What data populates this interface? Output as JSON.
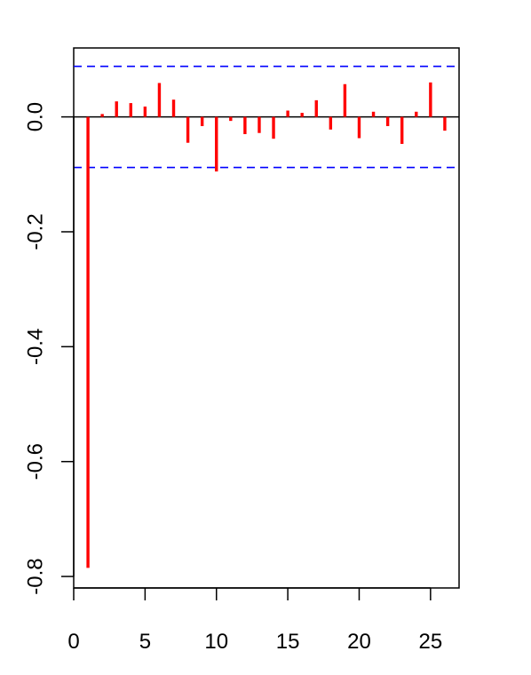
{
  "chart_data": {
    "type": "bar",
    "title": "",
    "xlabel": "",
    "ylabel": "",
    "x": [
      1,
      2,
      3,
      4,
      5,
      6,
      7,
      8,
      9,
      10,
      11,
      12,
      13,
      14,
      15,
      16,
      17,
      18,
      19,
      20,
      21,
      22,
      23,
      24,
      25,
      26
    ],
    "values": [
      -0.785,
      0.005,
      0.027,
      0.024,
      0.018,
      0.059,
      0.03,
      -0.045,
      -0.016,
      -0.095,
      -0.007,
      -0.03,
      -0.028,
      -0.038,
      0.011,
      0.007,
      0.029,
      -0.022,
      0.057,
      -0.037,
      0.009,
      -0.016,
      -0.047,
      0.009,
      0.06,
      -0.024
    ],
    "confidence_bounds": [
      0.088,
      -0.088
    ],
    "zero_line": 0,
    "xlim": [
      0,
      27
    ],
    "ylim": [
      -0.82,
      0.12
    ],
    "xticks": [
      0,
      5,
      10,
      15,
      20,
      25
    ],
    "xtick_labels": [
      "0",
      "5",
      "10",
      "15",
      "20",
      "25"
    ],
    "yticks": [
      0.0,
      -0.2,
      -0.4,
      -0.6,
      -0.8
    ],
    "ytick_labels": [
      "0.0",
      "-0.2",
      "-0.4",
      "-0.6",
      "-0.8"
    ],
    "grid": false,
    "colors": {
      "bars": "#ff0000",
      "bounds": "#0000ff",
      "zero_line": "#000000",
      "axes": "#000000"
    }
  }
}
